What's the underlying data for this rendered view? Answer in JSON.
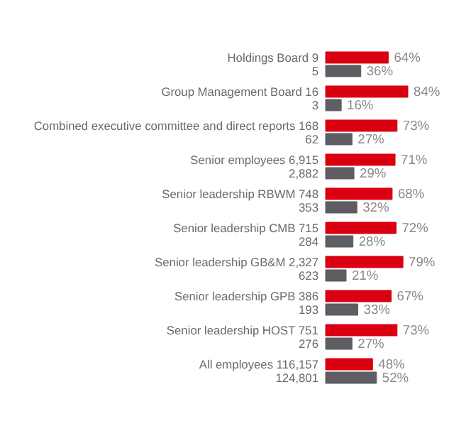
{
  "chart_data": {
    "type": "bar",
    "orientation": "horizontal",
    "categories": [
      "Holdings Board 9\n5",
      "Group Management Board 16\n3",
      "Combined executive committee and direct reports 168\n62",
      "Senior employees 6,915\n2,882",
      "Senior leadership RBWM 748\n353",
      "Senior leadership CMB 715\n284",
      "Senior leadership GB&M 2,327\n623",
      "Senior leadership GPB 386\n193",
      "Senior leadership HOST 751\n276",
      "All employees 116,157\n124,801"
    ],
    "series": [
      {
        "color": "#db0011",
        "values": [
          64,
          84,
          73,
          71,
          68,
          72,
          79,
          67,
          73,
          48
        ],
        "value_labels": [
          "64%",
          "84%",
          "73%",
          "71%",
          "68%",
          "72%",
          "79%",
          "67%",
          "73%",
          "48%"
        ]
      },
      {
        "color": "#5d5d62",
        "values": [
          36,
          16,
          27,
          29,
          32,
          28,
          21,
          33,
          27,
          52
        ],
        "value_labels": [
          "36%",
          "16%",
          "27%",
          "29%",
          "32%",
          "28%",
          "21%",
          "33%",
          "27%",
          "52%"
        ]
      }
    ]
  }
}
